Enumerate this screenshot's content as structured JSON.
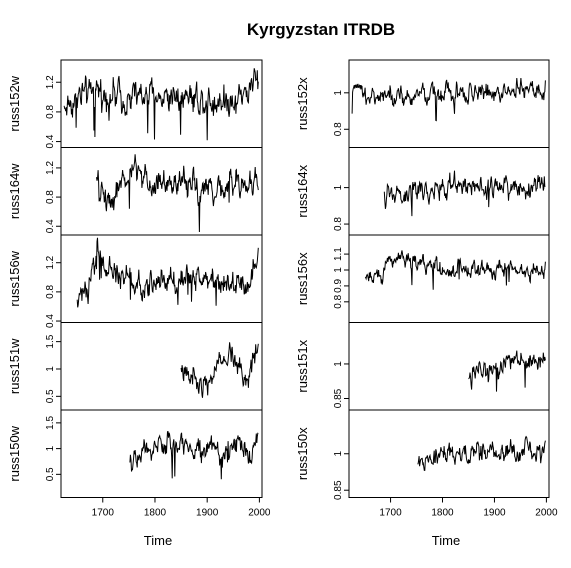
{
  "chart_data": {
    "type": "line",
    "title": "Kyrgyzstan ITRDB",
    "xlabel": "Time",
    "xlim": [
      1620,
      2005
    ],
    "x_ticks": [
      1700,
      1800,
      1900,
      2000
    ],
    "grid": false,
    "legend": "none",
    "panels": [
      {
        "name": "russ152w",
        "col": 0,
        "row": 0,
        "ylabel": "russ152w",
        "start": 1626,
        "end": 1998,
        "ylim": [
          0.32,
          1.5
        ],
        "yticks": [
          0.4,
          0.8,
          1.2
        ],
        "shape": [
          [
            1626,
            0.85
          ],
          [
            1650,
            1.0
          ],
          [
            1700,
            1.05
          ],
          [
            1750,
            1.0
          ],
          [
            1800,
            1.0
          ],
          [
            1850,
            1.05
          ],
          [
            1900,
            0.95
          ],
          [
            1950,
            0.98
          ],
          [
            1998,
            1.2
          ]
        ],
        "amp": 0.28
      },
      {
        "name": "russ164w",
        "col": 0,
        "row": 1,
        "ylabel": "russ164w",
        "start": 1688,
        "end": 1998,
        "ylim": [
          0.28,
          1.48
        ],
        "yticks": [
          0.4,
          0.8,
          1.2
        ],
        "shape": [
          [
            1688,
            0.95
          ],
          [
            1710,
            0.75
          ],
          [
            1740,
            1.0
          ],
          [
            1760,
            1.15
          ],
          [
            1800,
            0.95
          ],
          [
            1850,
            1.0
          ],
          [
            1900,
            0.9
          ],
          [
            1950,
            0.95
          ],
          [
            1998,
            1.0
          ]
        ],
        "amp": 0.25
      },
      {
        "name": "russ156w",
        "col": 0,
        "row": 2,
        "ylabel": "russ156w",
        "start": 1651,
        "end": 1998,
        "ylim": [
          0.38,
          1.58
        ],
        "yticks": [
          0.4,
          0.8,
          1.2
        ],
        "shape": [
          [
            1651,
            0.65
          ],
          [
            1670,
            0.85
          ],
          [
            1690,
            1.35
          ],
          [
            1710,
            1.05
          ],
          [
            1750,
            1.0
          ],
          [
            1780,
            0.8
          ],
          [
            1800,
            0.95
          ],
          [
            1900,
            1.0
          ],
          [
            1950,
            0.95
          ],
          [
            1980,
            0.85
          ],
          [
            1998,
            1.4
          ]
        ],
        "amp": 0.22
      },
      {
        "name": "russ151w",
        "col": 0,
        "row": 3,
        "ylabel": "russ151w",
        "start": 1850,
        "end": 1998,
        "ylim": [
          0.25,
          1.85
        ],
        "yticks": [
          0.5,
          1.0,
          1.5
        ],
        "shape": [
          [
            1850,
            1.05
          ],
          [
            1870,
            0.9
          ],
          [
            1890,
            0.8
          ],
          [
            1920,
            1.0
          ],
          [
            1950,
            1.3
          ],
          [
            1975,
            0.8
          ],
          [
            1998,
            1.5
          ]
        ],
        "amp": 0.3
      },
      {
        "name": "russ150w",
        "col": 0,
        "row": 4,
        "ylabel": "russ150w",
        "start": 1752,
        "end": 1998,
        "ylim": [
          0.05,
          1.75
        ],
        "yticks": [
          0.5,
          1.0,
          1.5
        ],
        "shape": [
          [
            1752,
            0.65
          ],
          [
            1780,
            1.0
          ],
          [
            1850,
            1.05
          ],
          [
            1900,
            1.0
          ],
          [
            1930,
            0.85
          ],
          [
            1960,
            1.05
          ],
          [
            1985,
            0.8
          ],
          [
            1998,
            1.3
          ]
        ],
        "amp": 0.3
      },
      {
        "name": "russ152x",
        "col": 1,
        "row": 0,
        "ylabel": "russ152x",
        "start": 1626,
        "end": 1998,
        "ylim": [
          0.7,
          1.18
        ],
        "yticks": [
          0.8,
          1.0
        ],
        "shape": [
          [
            1626,
            1.0
          ],
          [
            1700,
            0.98
          ],
          [
            1800,
            1.0
          ],
          [
            1900,
            1.0
          ],
          [
            1998,
            1.02
          ]
        ],
        "amp": 0.07
      },
      {
        "name": "russ164x",
        "col": 1,
        "row": 1,
        "ylabel": "russ164x",
        "start": 1688,
        "end": 1998,
        "ylim": [
          0.74,
          1.22
        ],
        "yticks": [
          0.8,
          1.0
        ],
        "shape": [
          [
            1688,
            0.95
          ],
          [
            1750,
            0.98
          ],
          [
            1850,
            1.0
          ],
          [
            1950,
            1.0
          ],
          [
            1998,
            1.0
          ]
        ],
        "amp": 0.08
      },
      {
        "name": "russ156x",
        "col": 1,
        "row": 2,
        "ylabel": "russ156x",
        "start": 1651,
        "end": 1998,
        "ylim": [
          0.67,
          1.22
        ],
        "yticks": [
          0.8,
          0.9,
          1.0,
          1.1
        ],
        "shape": [
          [
            1651,
            1.0
          ],
          [
            1670,
            0.95
          ],
          [
            1700,
            1.05
          ],
          [
            1720,
            1.08
          ],
          [
            1800,
            1.0
          ],
          [
            1900,
            1.0
          ],
          [
            1998,
            1.0
          ]
        ],
        "amp": 0.07
      },
      {
        "name": "russ151x",
        "col": 1,
        "row": 3,
        "ylabel": "russ151x",
        "start": 1850,
        "end": 1998,
        "ylim": [
          0.8,
          1.18
        ],
        "yticks": [
          0.85,
          1.0
        ],
        "shape": [
          [
            1850,
            0.95
          ],
          [
            1900,
            1.0
          ],
          [
            1950,
            1.02
          ],
          [
            1998,
            1.0
          ]
        ],
        "amp": 0.06
      },
      {
        "name": "russ150x",
        "col": 1,
        "row": 4,
        "ylabel": "russ150x",
        "start": 1752,
        "end": 1998,
        "ylim": [
          0.82,
          1.18
        ],
        "yticks": [
          0.85,
          1.0
        ],
        "shape": [
          [
            1752,
            0.95
          ],
          [
            1800,
            1.0
          ],
          [
            1900,
            1.0
          ],
          [
            1998,
            1.02
          ]
        ],
        "amp": 0.055
      }
    ]
  }
}
